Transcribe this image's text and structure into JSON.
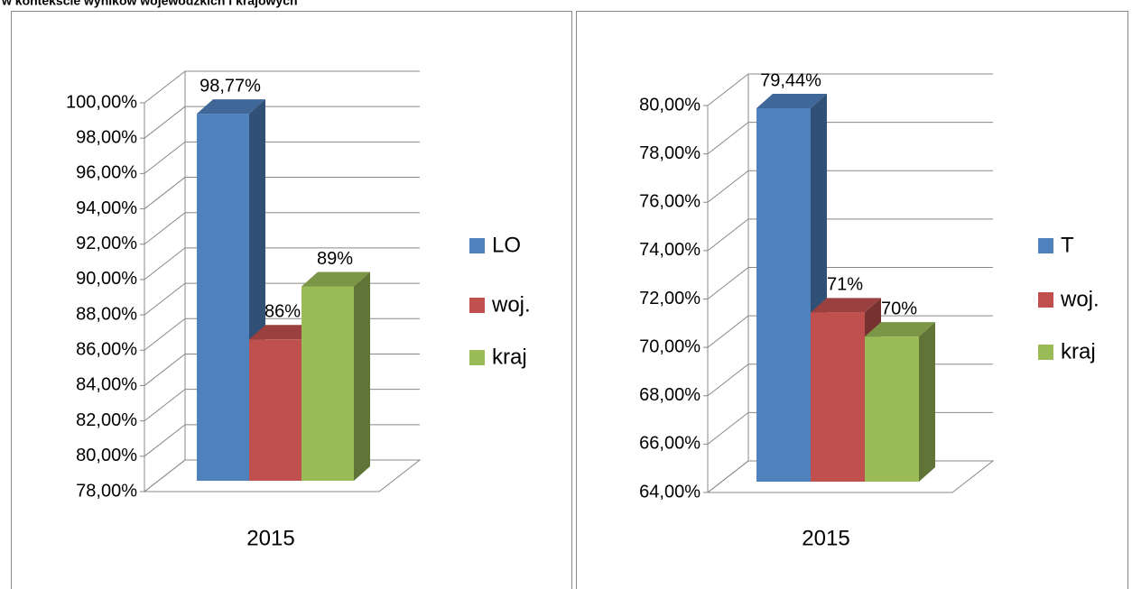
{
  "title": "w kontekście wyników wojewódzkich i krajowych",
  "chart_data": [
    {
      "type": "bar3d",
      "categories": [
        "2015"
      ],
      "series": [
        {
          "name": "LO",
          "color": "#4f81bd",
          "values": [
            98.77
          ],
          "value_labels": [
            "98,77%"
          ]
        },
        {
          "name": "woj.",
          "color": "#c0504d",
          "values": [
            86
          ],
          "value_labels": [
            "86%"
          ]
        },
        {
          "name": "kraj",
          "color": "#9bbb59",
          "values": [
            89
          ],
          "value_labels": [
            "89%"
          ]
        }
      ],
      "ylim": [
        78,
        100
      ],
      "yticks": [
        {
          "value": 78,
          "label": "78,00%"
        },
        {
          "value": 80,
          "label": "80,00%"
        },
        {
          "value": 82,
          "label": "82,00%"
        },
        {
          "value": 84,
          "label": "84,00%"
        },
        {
          "value": 86,
          "label": "86,00%"
        },
        {
          "value": 88,
          "label": "88,00%"
        },
        {
          "value": 90,
          "label": "90,00%"
        },
        {
          "value": 92,
          "label": "92,00%"
        },
        {
          "value": 94,
          "label": "94,00%"
        },
        {
          "value": 96,
          "label": "96,00%"
        },
        {
          "value": 98,
          "label": "98,00%"
        },
        {
          "value": 100,
          "label": "100,00%"
        }
      ],
      "grid": true,
      "legend": "right"
    },
    {
      "type": "bar3d",
      "categories": [
        "2015"
      ],
      "series": [
        {
          "name": "T",
          "color": "#4f81bd",
          "values": [
            79.44
          ],
          "value_labels": [
            "79,44%"
          ]
        },
        {
          "name": "woj.",
          "color": "#c0504d",
          "values": [
            71
          ],
          "value_labels": [
            "71%"
          ]
        },
        {
          "name": "kraj",
          "color": "#9bbb59",
          "values": [
            70
          ],
          "value_labels": [
            "70%"
          ]
        }
      ],
      "ylim": [
        64,
        80
      ],
      "yticks": [
        {
          "value": 64,
          "label": "64,00%"
        },
        {
          "value": 66,
          "label": "66,00%"
        },
        {
          "value": 68,
          "label": "68,00%"
        },
        {
          "value": 70,
          "label": "70,00%"
        },
        {
          "value": 72,
          "label": "72,00%"
        },
        {
          "value": 74,
          "label": "74,00%"
        },
        {
          "value": 76,
          "label": "76,00%"
        },
        {
          "value": 78,
          "label": "78,00%"
        },
        {
          "value": 80,
          "label": "80,00%"
        }
      ],
      "grid": true,
      "legend": "right"
    }
  ]
}
